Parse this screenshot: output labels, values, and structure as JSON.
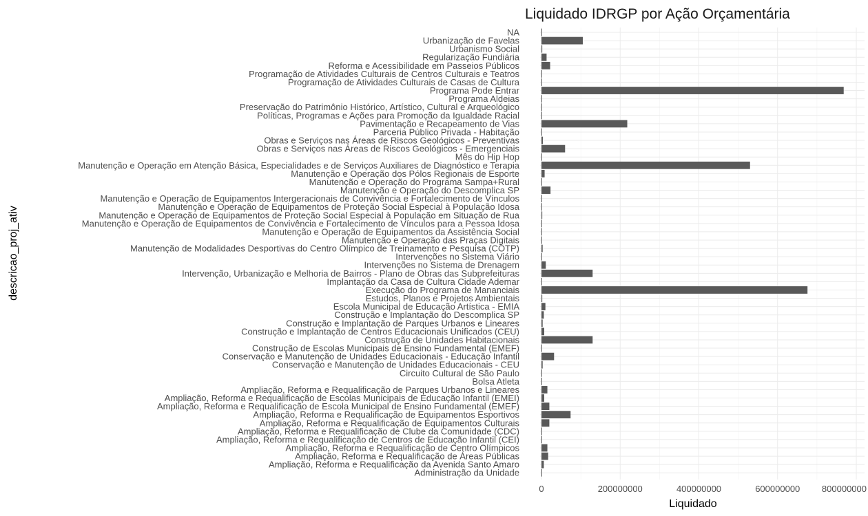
{
  "chart_data": {
    "type": "bar",
    "orientation": "horizontal",
    "title": "Liquidado IDRGP por Ação Orçamentária",
    "xlabel": "Liquidado",
    "ylabel": "descricao_proj_ativ",
    "xlim": [
      0,
      800000000
    ],
    "x_ticks": [
      0,
      200000000,
      400000000,
      600000000,
      800000000
    ],
    "x_tick_labels": [
      "0",
      "200000000",
      "400000000",
      "600000000",
      "800000000"
    ],
    "grid": true,
    "bar_color": "#595959",
    "categories": [
      "NA",
      "Urbanização de Favelas",
      "Urbanismo Social",
      "Regularização Fundiária",
      "Reforma e Acessibilidade em Passeios Públicos",
      "Programação de Atividades Culturais de Centros Culturais e Teatros",
      "Programação de Atividades Culturais de Casas de Cultura",
      "Programa Pode Entrar",
      "Programa Aldeias",
      "Preservação do Patrimônio Histórico, Artístico, Cultural e Arqueológico",
      "Políticas, Programas e Ações para Promoção da Igualdade Racial",
      "Pavimentação e Recapeamento de Vias",
      "Parceria Público Privada - Habitação",
      "Obras e Serviços nas Áreas de Riscos Geológicos - Preventivas",
      "Obras e Serviços nas Áreas de Riscos Geológicos - Emergenciais",
      "Mês do Hip Hop",
      "Manutenção e Operação em Atenção Básica, Especialidades e de Serviços Auxiliares de Diagnóstico e Terapia",
      "Manutenção e Operação dos Pólos Regionais de Esporte",
      "Manutenção e Operação do Programa Sampa+Rural",
      "Manutenção e Operação do Descomplica SP",
      "Manutenção e Operação de Equipamentos Intergeracionais de Convivência e Fortalecimento de Vínculos",
      "Manutenção e Operação de Equipamentos de Proteção Social Especial à População Idosa",
      "Manutenção e Operação de Equipamentos de Proteção Social Especial à População em Situação de Rua",
      "Manutenção e Operação de Equipamentos de Convivência e Fortalecimento de Vínculos para a Pessoa Idosa",
      "Manutenção e Operação de Equipamentos da Assistência Social",
      "Manutenção e Operação das Praças Digitais",
      "Manutenção de Modalidades Desportivas do Centro Olímpico de Treinamento e Pesquisa (COTP)",
      "Intervenções no Sistema Viário",
      "Intervenções no Sistema de Drenagem",
      "Intervenção, Urbanização e Melhoria de Bairros - Plano de Obras das Subprefeituras",
      "Implantação da Casa de Cultura Cidade Ademar",
      "Execução do Programa de Mananciais",
      "Estudos, Planos e Projetos Ambientais",
      "Escola Municipal de Educação Artística - EMIA",
      "Construção e Implantação do Descomplica SP",
      "Construção e Implantação de Parques Urbanos e Lineares",
      "Construção e Implantação de Centros Educacionais Unificados (CEU)",
      "Construção de Unidades Habitacionais",
      "Construção de Escolas Municipais de Ensino Fundamental (EMEF)",
      "Conservação e Manutenção de Unidades Educacionais - Educação Infantil",
      "Conservação e Manutenção de Unidades Educacionais - CEU",
      "Circuito Cultural de São Paulo",
      "Bolsa Atleta",
      "Ampliação, Reforma e Requalificação de Parques Urbanos e Lineares",
      "Ampliação, Reforma e Requalificação de Escolas Municipais de Educação Infantil (EMEI)",
      "Ampliação, Reforma e Requalificação de Escola Municipal de Ensino Fundamental (EMEF)",
      "Ampliação, Reforma e Requalificação de Equipamentos Esportivos",
      "Ampliação, Reforma e Requalificação de Equipamentos Culturais",
      "Ampliação, Reforma e Requalificação de Clube da Comunidade (CDC)",
      "Ampliação, Reforma e Requalificação de Centros de Educação Infantil (CEI)",
      "Ampliação, Reforma e Requalificação de Centro Olímpicos",
      "Ampliação, Reforma e Requalificação de Áreas Públicas",
      "Ampliação, Reforma e Requalificação da Avenida Santo Amaro",
      "Administração da Unidade"
    ],
    "values": [
      1000000,
      105000000,
      2000000,
      13000000,
      22000000,
      500000,
      500000,
      768000000,
      1500000,
      1500000,
      500000,
      218000000,
      500000,
      3500000,
      60000000,
      500000,
      530000000,
      8000000,
      1500000,
      23000000,
      1500000,
      1500000,
      2000000,
      500000,
      1500000,
      500000,
      3000000,
      1000000,
      11000000,
      130000000,
      1500000,
      676000000,
      2000000,
      10000000,
      6000000,
      3000000,
      7000000,
      130000000,
      1000000,
      32000000,
      3000000,
      500000,
      1000000,
      15000000,
      7000000,
      20000000,
      74000000,
      20000000,
      1000000,
      1500000,
      15000000,
      17000000,
      6000000,
      1000000
    ]
  }
}
